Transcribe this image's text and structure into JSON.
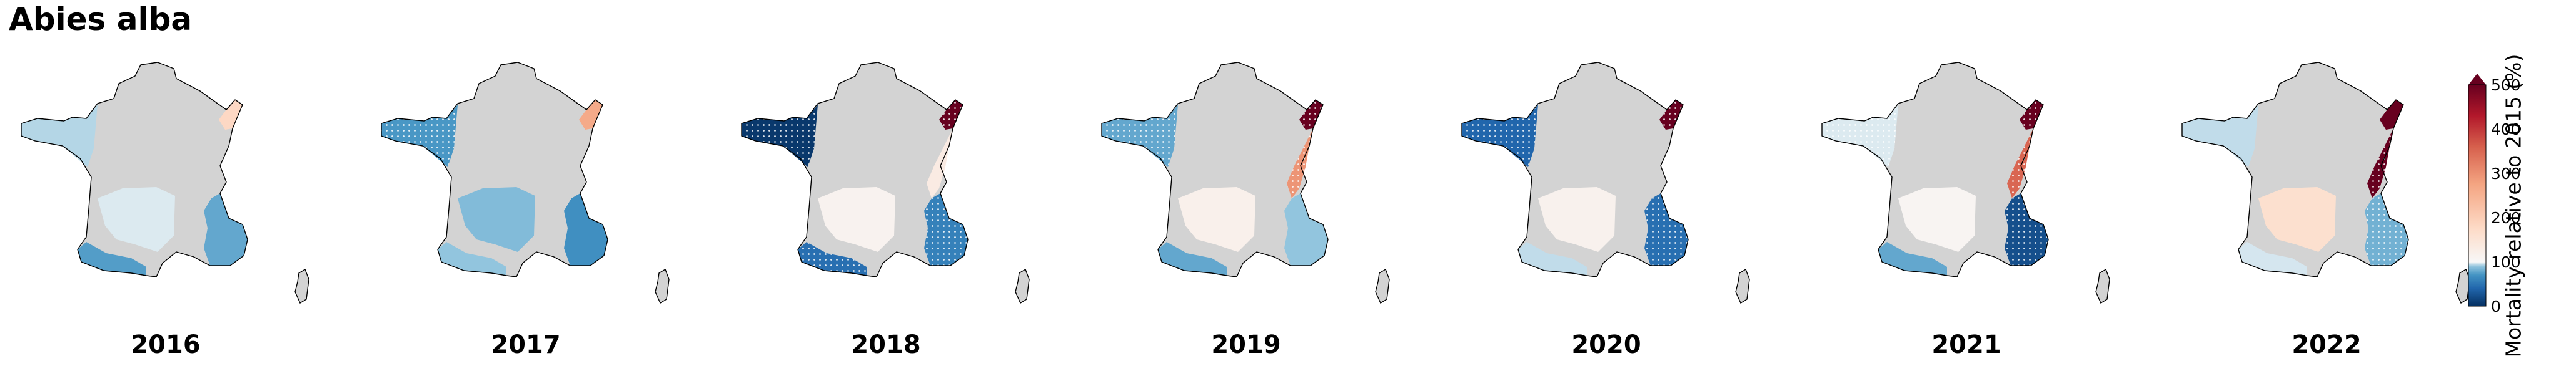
{
  "title": "Abies alba",
  "colorbar": {
    "label": "Mortality relative to 2015 (%)",
    "ticks": [
      "0",
      "100",
      "200",
      "300",
      "400",
      "500"
    ],
    "min": 0,
    "max": 500,
    "center": 100,
    "extend": "max",
    "colormap": "RdBu_r (diverging, blue = below 100%, red = above 100%)"
  },
  "legend_meaning": {
    "hatched_dots": "significant change (dotted regions)"
  },
  "colors": {
    "no_data": "#d3d3d3",
    "coast": "#000000"
  },
  "regions": [
    "west",
    "central",
    "southeast",
    "east",
    "northeast",
    "pyrenees"
  ],
  "panels": [
    {
      "year": "2016",
      "values": {
        "west": 90,
        "central": 96,
        "southeast": 70,
        "east": null,
        "northeast": 165,
        "pyrenees": 65
      },
      "hatched": []
    },
    {
      "year": "2017",
      "values": {
        "west": 62,
        "central": 80,
        "southeast": 58,
        "east": null,
        "northeast": 250,
        "pyrenees": 85
      },
      "hatched": [
        "west"
      ]
    },
    {
      "year": "2018",
      "values": {
        "west": 5,
        "central": 110,
        "southeast": 50,
        "east": 125,
        "northeast": 500,
        "pyrenees": 40
      },
      "hatched": [
        "west",
        "northeast",
        "southeast",
        "pyrenees"
      ]
    },
    {
      "year": "2019",
      "values": {
        "west": 70,
        "central": 115,
        "southeast": 85,
        "east": 280,
        "northeast": 500,
        "pyrenees": 70
      },
      "hatched": [
        "west",
        "northeast",
        "east"
      ]
    },
    {
      "year": "2020",
      "values": {
        "west": 35,
        "central": 112,
        "southeast": 40,
        "east": null,
        "northeast": 500,
        "pyrenees": 92
      },
      "hatched": [
        "west",
        "northeast",
        "southeast"
      ]
    },
    {
      "year": "2021",
      "values": {
        "west": 96,
        "central": 106,
        "southeast": 20,
        "east": 340,
        "northeast": 500,
        "pyrenees": 70
      },
      "hatched": [
        "west",
        "northeast",
        "east",
        "southeast"
      ]
    },
    {
      "year": "2022",
      "values": {
        "west": 92,
        "central": 150,
        "southeast": 75,
        "east": 500,
        "northeast": 500,
        "pyrenees": 95
      },
      "hatched": [
        "east",
        "southeast"
      ]
    }
  ]
}
